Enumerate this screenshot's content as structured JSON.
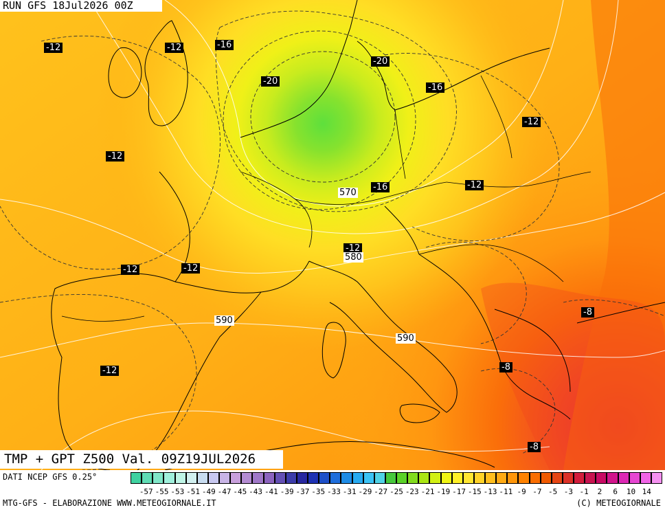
{
  "header": {
    "run": "RUN GFS 18Jul2026 00Z",
    "title": "TMP + GPT Z500 Val. 09Z19JUL2026"
  },
  "footer": {
    "source": "DATI NCEP GFS 0.25°",
    "credit_left": "MTG-GFS - ELABORAZIONE WWW.METEOGIORNALE.IT",
    "credit_right": "(C) METEOGIORNALE"
  },
  "isotherm_labels": [
    "-12",
    "-12",
    "-16",
    "-20",
    "-20",
    "-16",
    "-12",
    "-12",
    "-16",
    "-12",
    "-12",
    "-12",
    "-12",
    "-12",
    "-8",
    "-8",
    "-8"
  ],
  "height_labels": [
    "570",
    "580",
    "590",
    "590"
  ],
  "legend": {
    "ticks": [
      "-57",
      "-55",
      "-53",
      "-51",
      "-49",
      "-47",
      "-45",
      "-43",
      "-41",
      "-39",
      "-37",
      "-35",
      "-33",
      "-31",
      "-29",
      "-27",
      "-25",
      "-23",
      "-21",
      "-19",
      "-17",
      "-15",
      "-13",
      "-11",
      "-9",
      "-7",
      "-5",
      "-3",
      "-1",
      "2",
      "6",
      "10",
      "14"
    ],
    "colors": [
      "#3fd2a0",
      "#5fdcb4",
      "#80e6c8",
      "#a0f0dc",
      "#bff5e6",
      "#d2f0f0",
      "#c8dcf0",
      "#c8c8f0",
      "#c8b4e6",
      "#c8a0dc",
      "#b48cd2",
      "#a078c8",
      "#8c64be",
      "#6450b4",
      "#3c3caa",
      "#2828a0",
      "#1e32b4",
      "#1e50c8",
      "#1e6edc",
      "#1e8ce6",
      "#28aaf0",
      "#3cc3f5",
      "#50d2e6",
      "#46c83c",
      "#5ad228",
      "#82dc1e",
      "#aae614",
      "#d2f014",
      "#f0f514",
      "#fff028",
      "#ffe632",
      "#ffd228",
      "#ffbe1e",
      "#ffaa14",
      "#ff960a",
      "#ff8200",
      "#fa6e00",
      "#f05a00",
      "#e64614",
      "#dc3228",
      "#d21e3c",
      "#c81450",
      "#c80a64",
      "#d2148c",
      "#dc28b4",
      "#e646d2",
      "#f064e6",
      "#f591f0"
    ]
  }
}
